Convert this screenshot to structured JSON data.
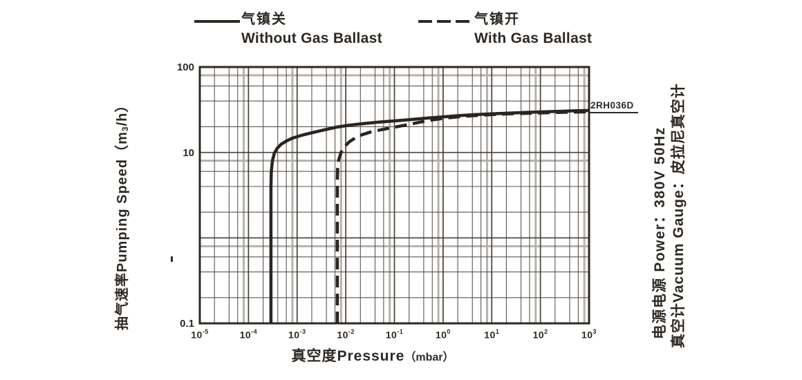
{
  "colors": {
    "background": "#ffffff",
    "ink": "#2e2823",
    "curve": "#2b2420",
    "grid_minor": "#5a5450",
    "grid_major": "#454039",
    "grid_light": "#b5b2ae"
  },
  "legend": {
    "items": [
      {
        "label_zh": "气镇关",
        "label_en": "Without Gas Ballast",
        "line_style": "solid"
      },
      {
        "label_zh": "气镇开",
        "label_en": "With Gas Ballast",
        "line_style": "dashed"
      }
    ]
  },
  "axes": {
    "x_title_zh": "真空度",
    "x_title_en": "Pressure",
    "x_title_unit": "（mbar）",
    "y_title_zh": "抽气速率",
    "y_title_en": "Pumping Speed",
    "y_unit_open": "（m",
    "y_unit_sub": "3",
    "y_unit_close": "/h）"
  },
  "side_notes": {
    "power": "电源电源  Power：380V 50Hz",
    "gauge": "真空计Vacuum Gauge：皮拉尼真空计"
  },
  "chart_data": {
    "type": "line",
    "x_scale": "log",
    "y_scale": "log",
    "xlim": [
      1e-05,
      1000
    ],
    "ylim": [
      0.1,
      100
    ],
    "xlabel": "真空度Pressure（mbar）",
    "ylabel": "抽气速率Pumping Speed（m3/h）",
    "x_tick_exponents": [
      -5,
      -4,
      -3,
      -2,
      -1,
      0,
      1,
      2,
      3
    ],
    "y_ticks": [
      {
        "value": 100,
        "label": "100"
      },
      {
        "value": 10,
        "label": "10"
      },
      {
        "value": 0.1,
        "label": "0.1"
      }
    ],
    "grid": {
      "minor_multipliers": [
        2,
        4,
        6
      ],
      "light_multiplier": 8,
      "grid_on": true
    },
    "legend_position": "top",
    "curve_label": "2RH036D",
    "series": [
      {
        "name": "Without Gas Ballast",
        "name_zh": "气镇关",
        "style": "solid",
        "points": [
          [
            0.00029,
            0.1
          ],
          [
            0.00029,
            4
          ],
          [
            0.000295,
            6
          ],
          [
            0.00031,
            8
          ],
          [
            0.00034,
            9.8
          ],
          [
            0.00039,
            11.2
          ],
          [
            0.00047,
            12.5
          ],
          [
            0.0006,
            13.6
          ],
          [
            0.0008,
            14.7
          ],
          [
            0.0012,
            15.8
          ],
          [
            0.002,
            17
          ],
          [
            0.0035,
            18.3
          ],
          [
            0.0065,
            19.8
          ],
          [
            0.012,
            20.9
          ],
          [
            0.025,
            21.9
          ],
          [
            0.05,
            22.7
          ],
          [
            0.1,
            23.4
          ],
          [
            0.22,
            24.3
          ],
          [
            0.5,
            25.3
          ],
          [
            1,
            26.1
          ],
          [
            2.2,
            27
          ],
          [
            5,
            27.8
          ],
          [
            10,
            28.3
          ],
          [
            22,
            28.9
          ],
          [
            50,
            29.4
          ],
          [
            100,
            29.8
          ],
          [
            220,
            30.2
          ],
          [
            500,
            30.7
          ],
          [
            1000,
            31
          ]
        ]
      },
      {
        "name": "With Gas Ballast",
        "name_zh": "气镇开",
        "style": "dashed",
        "points": [
          [
            0.0067,
            0.1
          ],
          [
            0.0067,
            4.5
          ],
          [
            0.0068,
            6.5
          ],
          [
            0.0072,
            8.3
          ],
          [
            0.008,
            10
          ],
          [
            0.0095,
            11.8
          ],
          [
            0.012,
            13.4
          ],
          [
            0.016,
            14.9
          ],
          [
            0.022,
            16.2
          ],
          [
            0.032,
            17.3
          ],
          [
            0.05,
            18.3
          ],
          [
            0.08,
            19.3
          ],
          [
            0.13,
            20.3
          ],
          [
            0.2,
            21.3
          ],
          [
            0.32,
            22.5
          ],
          [
            0.5,
            23.6
          ],
          [
            0.8,
            24.6
          ],
          [
            1.4,
            25.6
          ],
          [
            2.5,
            26.4
          ],
          [
            5,
            27.1
          ],
          [
            10,
            27.7
          ],
          [
            22,
            28.3
          ],
          [
            50,
            28.7
          ],
          [
            100,
            29
          ],
          [
            220,
            29.4
          ],
          [
            500,
            29.7
          ],
          [
            1000,
            30
          ]
        ]
      }
    ]
  }
}
